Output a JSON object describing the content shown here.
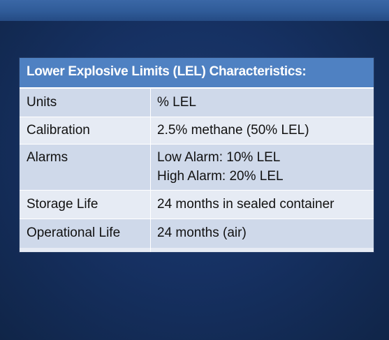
{
  "table": {
    "title": "Lower Explosive Limits (LEL) Characteristics:",
    "rows": [
      {
        "label": "Units",
        "lines": [
          "% LEL"
        ]
      },
      {
        "label": "Calibration",
        "lines": [
          "2.5% methane (50% LEL)"
        ]
      },
      {
        "label": "Alarms",
        "lines": [
          "Low Alarm: 10% LEL",
          "High Alarm: 20% LEL"
        ]
      },
      {
        "label": "Storage Life",
        "lines": [
          "24 months in sealed container"
        ]
      },
      {
        "label": "Operational Life",
        "lines": [
          "24 months (air)"
        ]
      }
    ]
  },
  "colors": {
    "header": "#4f81c2",
    "row_alt": "#cfd9ea",
    "row_base": "#e6ebf4",
    "background": "#13284c"
  }
}
